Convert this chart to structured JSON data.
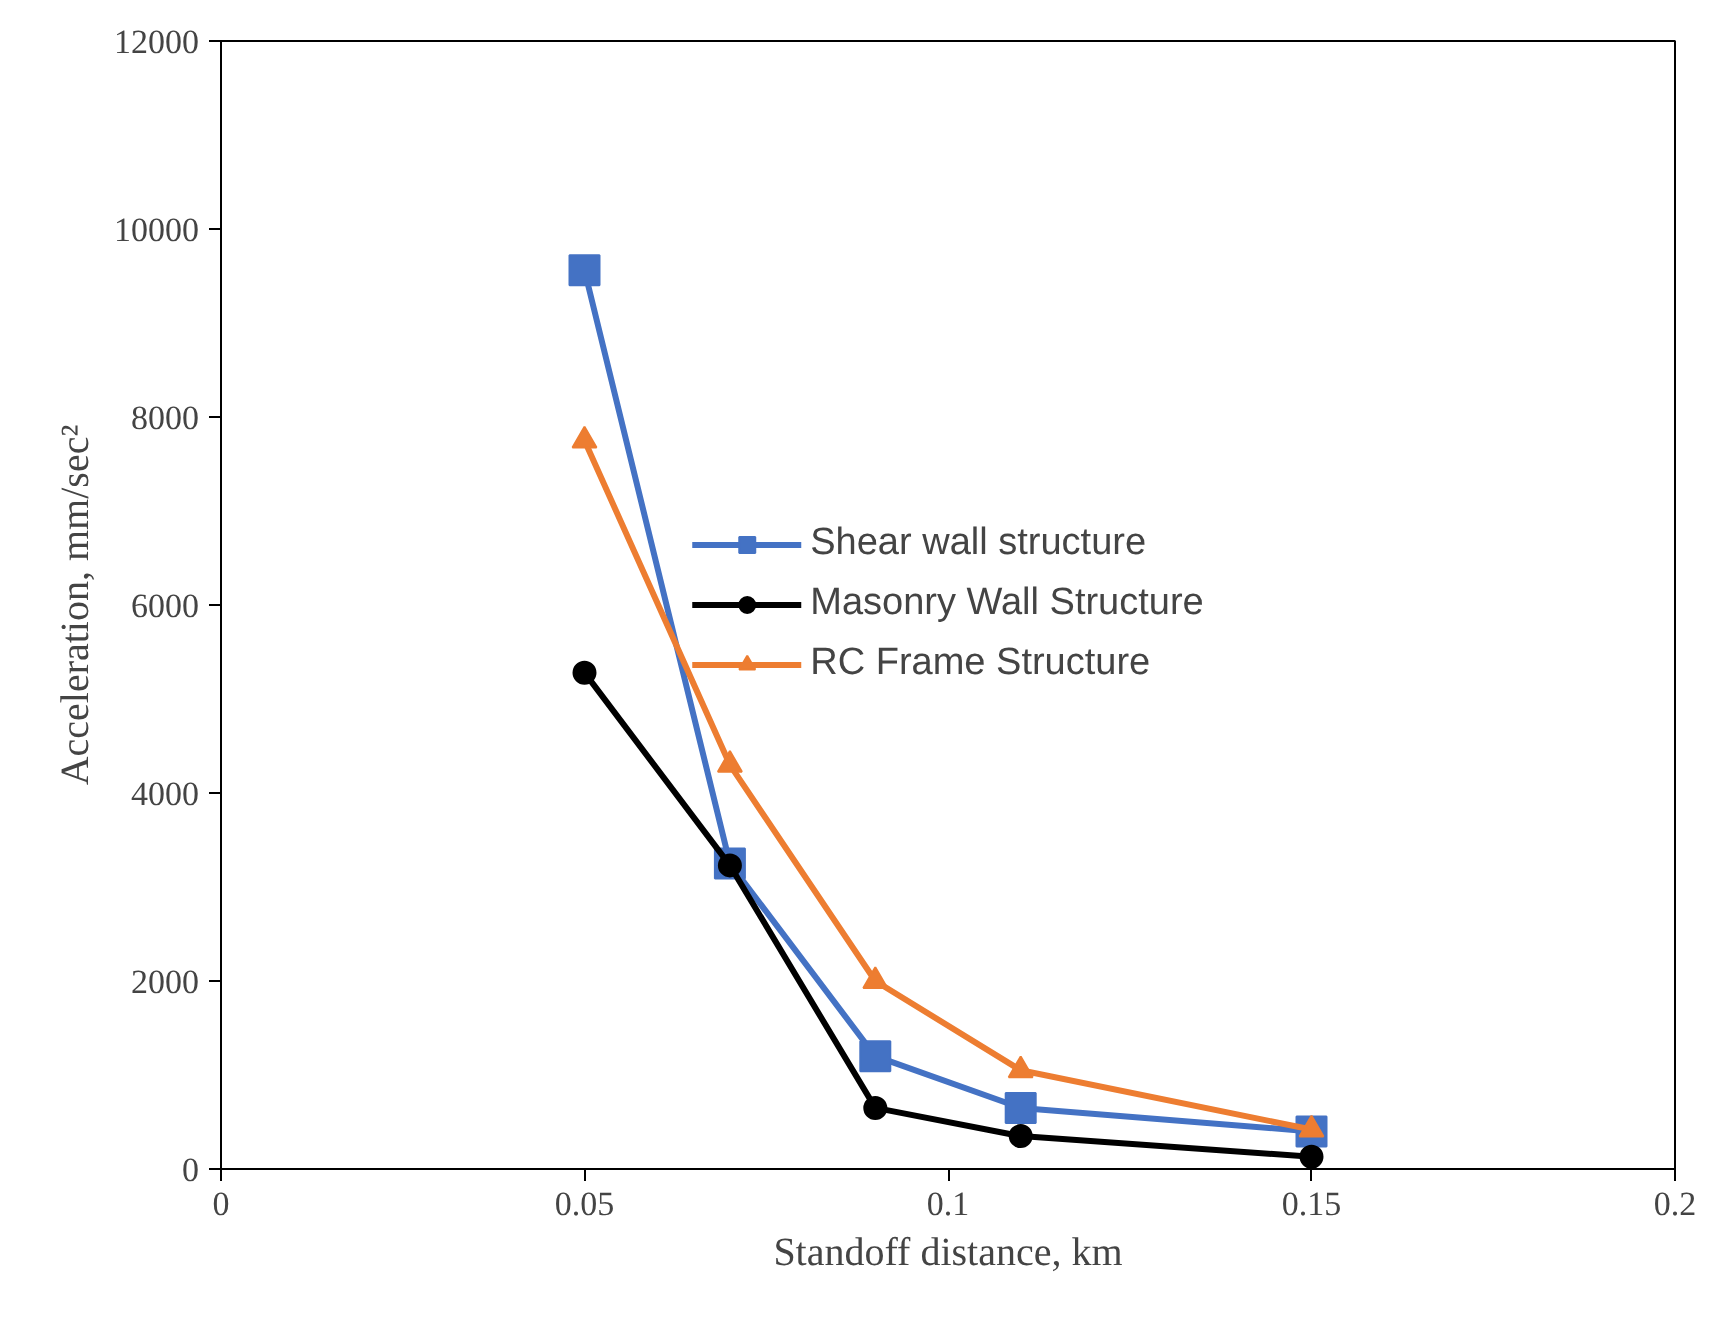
{
  "chart_data": {
    "type": "line",
    "xlabel": "Standoff distance, km",
    "ylabel": "Acceleration, mm/sec²",
    "x": [
      0.05,
      0.07,
      0.09,
      0.11,
      0.15
    ],
    "series": [
      {
        "name": "Shear wall structure",
        "color": "#4472c4",
        "marker": "square",
        "values": [
          9560,
          3250,
          1200,
          650,
          400
        ]
      },
      {
        "name": "Masonry Wall Structure",
        "color": "#000000",
        "marker": "circle",
        "values": [
          5280,
          3230,
          650,
          350,
          130
        ]
      },
      {
        "name": "RC Frame Structure",
        "color": "#ed7d31",
        "marker": "triangle",
        "values": [
          7750,
          4300,
          2000,
          1050,
          420
        ]
      }
    ],
    "xlim": [
      0,
      0.2
    ],
    "xticks": [
      0,
      0.05,
      0.1,
      0.15,
      0.2
    ],
    "ylim": [
      0,
      12000
    ],
    "yticks": [
      0,
      2000,
      4000,
      6000,
      8000,
      10000,
      12000
    ],
    "grid": false,
    "legend": "center",
    "line_style": "solid"
  }
}
